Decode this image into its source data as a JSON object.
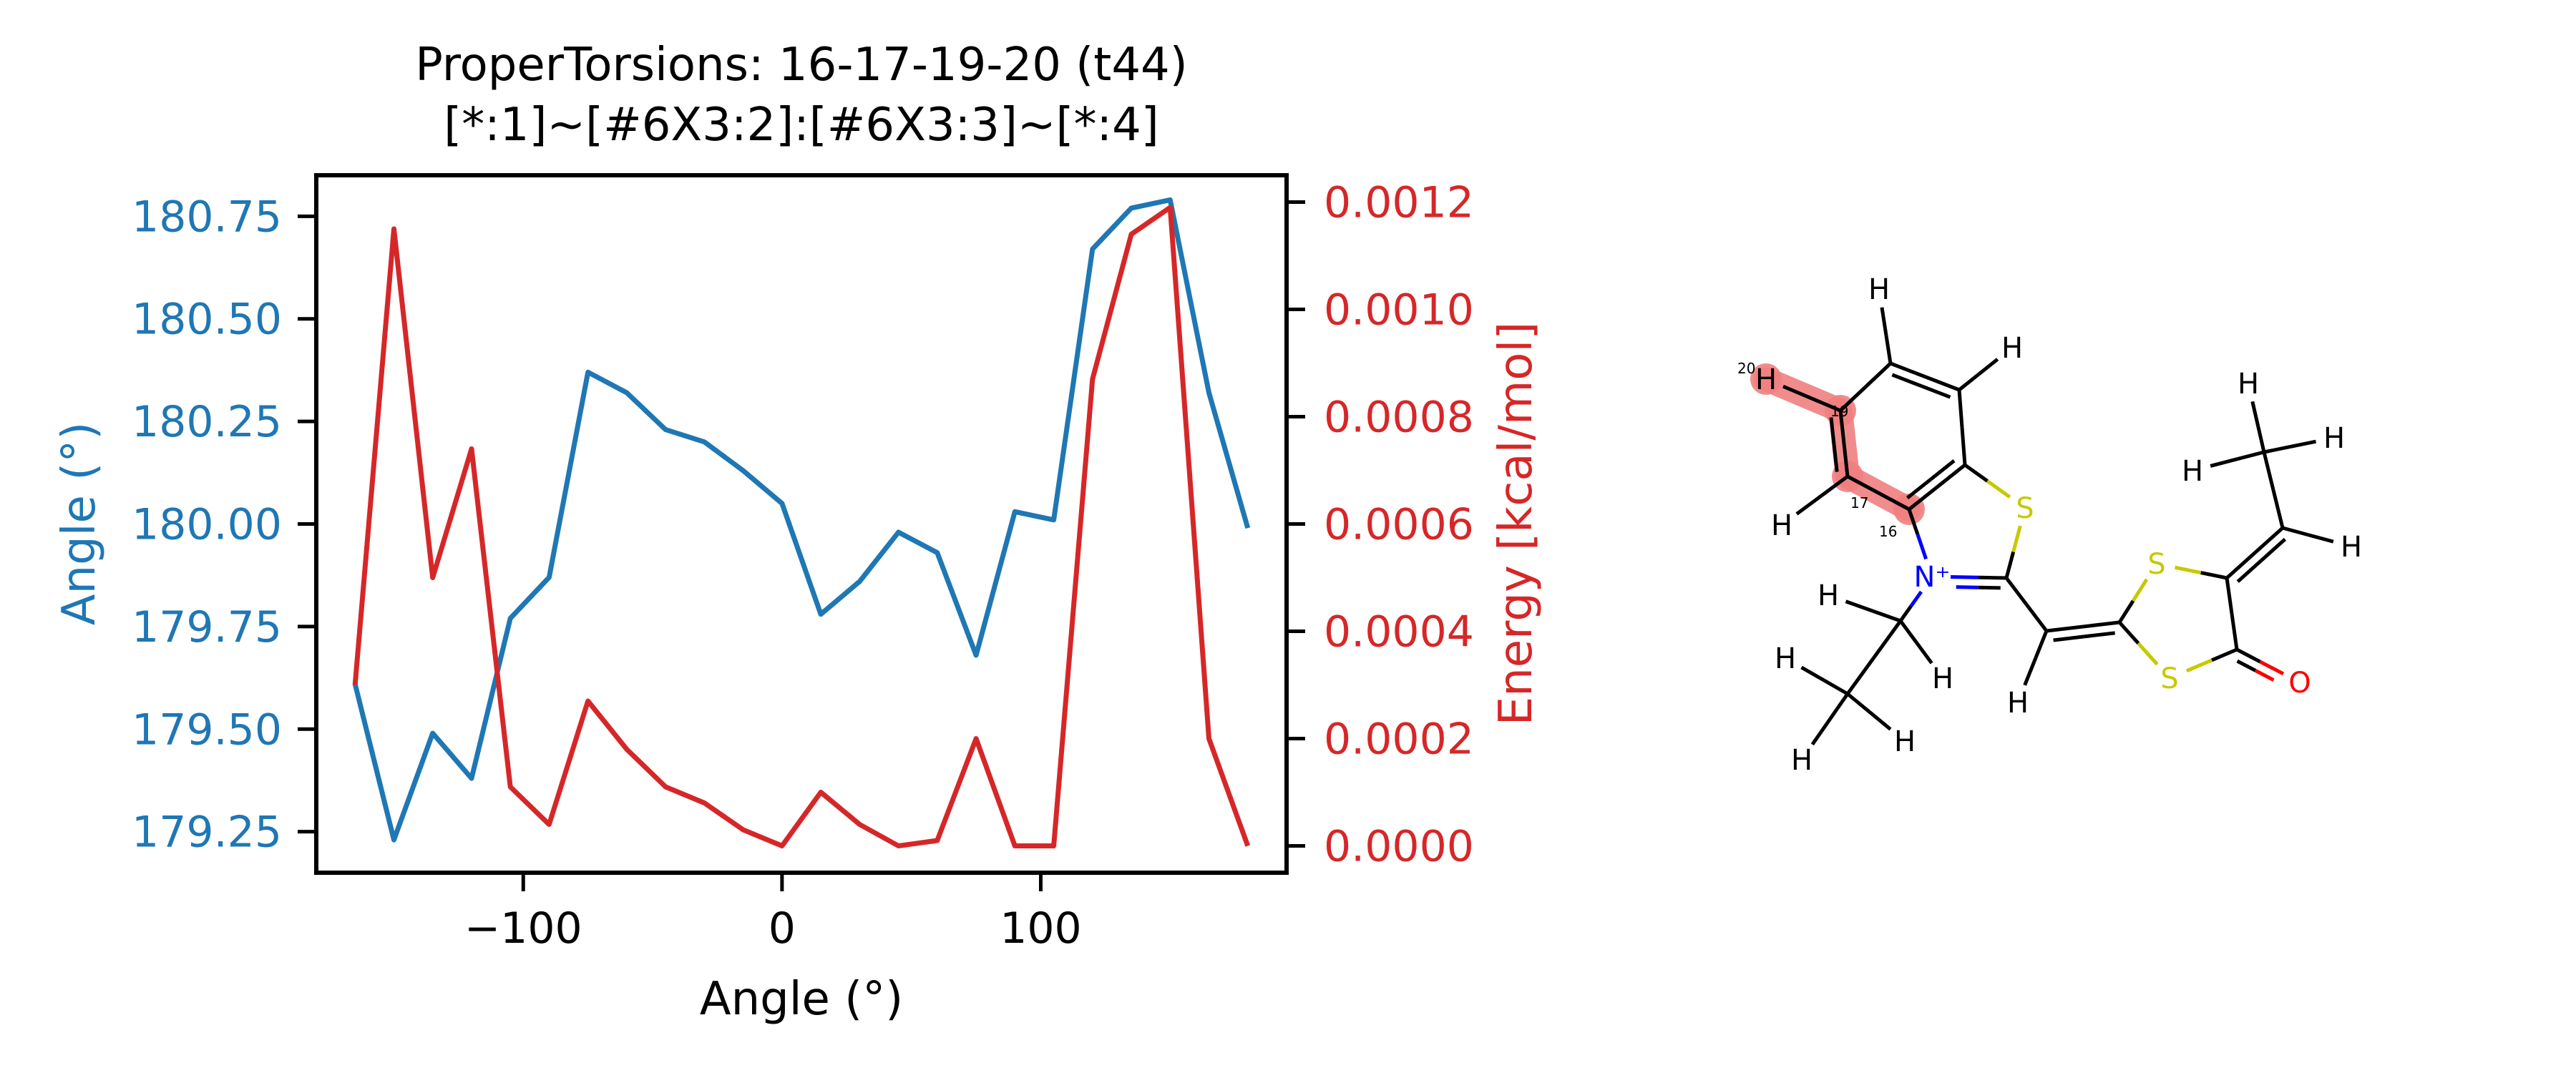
{
  "chart_data": {
    "type": "line",
    "title": "ProperTorsions: 16-17-19-20 (t44)",
    "subtitle": "[*:1]~[#6X3:2]:[#6X3:3]~[*:4]",
    "xlabel": "Angle (°)",
    "ylabel_left": "Angle (°)",
    "ylabel_right": "Energy [kcal/mol]",
    "xlim": [
      -180,
      195
    ],
    "ylim_left": [
      179.15,
      180.85
    ],
    "ylim_right": [
      -5e-05,
      0.00125
    ],
    "x_ticks": [
      -100,
      0,
      100
    ],
    "x_tick_labels": [
      "−100",
      "0",
      "100"
    ],
    "y_left_ticks": [
      179.25,
      179.5,
      179.75,
      180.0,
      180.25,
      180.5,
      180.75
    ],
    "y_left_tick_labels": [
      "179.25",
      "179.50",
      "179.75",
      "180.00",
      "180.25",
      "180.50",
      "180.75"
    ],
    "y_right_ticks": [
      0,
      0.0002,
      0.0004,
      0.0006,
      0.0008,
      0.001,
      0.0012
    ],
    "y_right_tick_labels": [
      "0.0000",
      "0.0002",
      "0.0004",
      "0.0006",
      "0.0008",
      "0.0010",
      "0.0012"
    ],
    "grid": false,
    "colors": {
      "left": "#1f77b4",
      "right": "#d62728",
      "axes": "#000000"
    },
    "x": [
      -165,
      -150,
      -135,
      -120,
      -105,
      -90,
      -75,
      -60,
      -45,
      -30,
      -15,
      0,
      15,
      30,
      45,
      60,
      75,
      90,
      105,
      120,
      135,
      150,
      165,
      180
    ],
    "series": [
      {
        "axis": "left",
        "values": [
          179.61,
          179.23,
          179.49,
          179.38,
          179.77,
          179.87,
          180.37,
          180.32,
          180.23,
          180.2,
          180.13,
          180.05,
          179.78,
          179.86,
          179.98,
          179.93,
          179.68,
          180.03,
          180.01,
          180.67,
          180.77,
          180.79,
          180.32,
          179.99
        ]
      },
      {
        "axis": "right",
        "values": [
          0.0003,
          0.00115,
          0.0005,
          0.00074,
          0.00011,
          4e-05,
          0.00027,
          0.00018,
          0.00011,
          8e-05,
          3e-05,
          0.0,
          0.0001,
          4e-05,
          0.0,
          1e-05,
          0.0002,
          0.0,
          0.0,
          0.00087,
          0.00114,
          0.00119,
          0.0002,
          0.0
        ]
      }
    ]
  },
  "molecule": {
    "highlight_color": "#f08080",
    "atoms": [
      {
        "id": "h20",
        "symbol": "H",
        "index_label": "20",
        "color": "#000000"
      },
      {
        "id": "c19",
        "symbol": "",
        "index_label": "19",
        "color": "#000000"
      },
      {
        "id": "c17",
        "symbol": "",
        "index_label": "17",
        "color": "#000000"
      },
      {
        "id": "c16",
        "symbol": "",
        "index_label": "16",
        "color": "#000000"
      },
      {
        "id": "h17",
        "symbol": "H",
        "index_label": "",
        "color": "#000000"
      },
      {
        "id": "c_top",
        "symbol": "",
        "index_label": "",
        "color": "#000000"
      },
      {
        "id": "h_top",
        "symbol": "H",
        "index_label": "",
        "color": "#000000"
      },
      {
        "id": "c_tr",
        "symbol": "",
        "index_label": "",
        "color": "#000000"
      },
      {
        "id": "h_tr",
        "symbol": "H",
        "index_label": "",
        "color": "#000000"
      },
      {
        "id": "c_br",
        "symbol": "",
        "index_label": "",
        "color": "#000000"
      },
      {
        "id": "s1",
        "symbol": "S",
        "index_label": "",
        "color": "#c8c800"
      },
      {
        "id": "n1",
        "symbol": "N⁺",
        "index_label": "",
        "color": "#0000ff"
      },
      {
        "id": "c2",
        "symbol": "",
        "index_label": "",
        "color": "#000000"
      },
      {
        "id": "c_et1",
        "symbol": "",
        "index_label": "",
        "color": "#000000"
      },
      {
        "id": "h_et1a",
        "symbol": "H",
        "index_label": "",
        "color": "#000000"
      },
      {
        "id": "h_et1b",
        "symbol": "H",
        "index_label": "",
        "color": "#000000"
      },
      {
        "id": "c_et2",
        "symbol": "",
        "index_label": "",
        "color": "#000000"
      },
      {
        "id": "h_et2a",
        "symbol": "H",
        "index_label": "",
        "color": "#000000"
      },
      {
        "id": "h_et2b",
        "symbol": "H",
        "index_label": "",
        "color": "#000000"
      },
      {
        "id": "h_et2c",
        "symbol": "H",
        "index_label": "",
        "color": "#000000"
      },
      {
        "id": "c_vin",
        "symbol": "",
        "index_label": "",
        "color": "#000000"
      },
      {
        "id": "h_vin",
        "symbol": "H",
        "index_label": "",
        "color": "#000000"
      },
      {
        "id": "c_dt",
        "symbol": "",
        "index_label": "",
        "color": "#000000"
      },
      {
        "id": "s_top",
        "symbol": "S",
        "index_label": "",
        "color": "#c8c800"
      },
      {
        "id": "s_bot",
        "symbol": "S",
        "index_label": "",
        "color": "#c8c800"
      },
      {
        "id": "c_ring",
        "symbol": "",
        "index_label": "",
        "color": "#000000"
      },
      {
        "id": "c_co",
        "symbol": "",
        "index_label": "",
        "color": "#000000"
      },
      {
        "id": "o1",
        "symbol": "O",
        "index_label": "",
        "color": "#ff0000"
      },
      {
        "id": "c_ex",
        "symbol": "",
        "index_label": "",
        "color": "#000000"
      },
      {
        "id": "h_ex",
        "symbol": "H",
        "index_label": "",
        "color": "#000000"
      },
      {
        "id": "c_me",
        "symbol": "",
        "index_label": "",
        "color": "#000000"
      },
      {
        "id": "h_me1",
        "symbol": "H",
        "index_label": "",
        "color": "#000000"
      },
      {
        "id": "h_me2",
        "symbol": "H",
        "index_label": "",
        "color": "#000000"
      },
      {
        "id": "h_me3",
        "symbol": "H",
        "index_label": "",
        "color": "#000000"
      }
    ],
    "bonds": [
      {
        "a": "h20",
        "b": "c19",
        "order": 1,
        "highlight": true
      },
      {
        "a": "c19",
        "b": "c17",
        "order": 2,
        "highlight": true
      },
      {
        "a": "c17",
        "b": "c16",
        "order": 1,
        "highlight": true
      },
      {
        "a": "c17",
        "b": "h17",
        "order": 1
      },
      {
        "a": "c19",
        "b": "c_top",
        "order": 1
      },
      {
        "a": "c_top",
        "b": "h_top",
        "order": 1
      },
      {
        "a": "c_top",
        "b": "c_tr",
        "order": 2
      },
      {
        "a": "c_tr",
        "b": "h_tr",
        "order": 1
      },
      {
        "a": "c_tr",
        "b": "c_br",
        "order": 1
      },
      {
        "a": "c_br",
        "b": "c16",
        "order": 2
      },
      {
        "a": "c_br",
        "b": "s1",
        "order": 1
      },
      {
        "a": "c16",
        "b": "n1",
        "order": 1
      },
      {
        "a": "s1",
        "b": "c2",
        "order": 1
      },
      {
        "a": "n1",
        "b": "c2",
        "order": 2
      },
      {
        "a": "n1",
        "b": "c_et1",
        "order": 1
      },
      {
        "a": "c_et1",
        "b": "h_et1a",
        "order": 1
      },
      {
        "a": "c_et1",
        "b": "h_et1b",
        "order": 1
      },
      {
        "a": "c_et1",
        "b": "c_et2",
        "order": 1
      },
      {
        "a": "c_et2",
        "b": "h_et2a",
        "order": 1
      },
      {
        "a": "c_et2",
        "b": "h_et2b",
        "order": 1
      },
      {
        "a": "c_et2",
        "b": "h_et2c",
        "order": 1
      },
      {
        "a": "c2",
        "b": "c_vin",
        "order": 1
      },
      {
        "a": "c_vin",
        "b": "h_vin",
        "order": 1
      },
      {
        "a": "c_vin",
        "b": "c_dt",
        "order": 2
      },
      {
        "a": "c_dt",
        "b": "s_top",
        "order": 1
      },
      {
        "a": "c_dt",
        "b": "s_bot",
        "order": 1
      },
      {
        "a": "s_top",
        "b": "c_ring",
        "order": 1
      },
      {
        "a": "c_ring",
        "b": "c_co",
        "order": 1
      },
      {
        "a": "c_co",
        "b": "s_bot",
        "order": 1
      },
      {
        "a": "c_co",
        "b": "o1",
        "order": 2
      },
      {
        "a": "c_ring",
        "b": "c_ex",
        "order": 2
      },
      {
        "a": "c_ex",
        "b": "h_ex",
        "order": 1
      },
      {
        "a": "c_ex",
        "b": "c_me",
        "order": 1
      },
      {
        "a": "c_me",
        "b": "h_me1",
        "order": 1
      },
      {
        "a": "c_me",
        "b": "h_me2",
        "order": 1
      },
      {
        "a": "c_me",
        "b": "h_me3",
        "order": 1
      }
    ]
  }
}
